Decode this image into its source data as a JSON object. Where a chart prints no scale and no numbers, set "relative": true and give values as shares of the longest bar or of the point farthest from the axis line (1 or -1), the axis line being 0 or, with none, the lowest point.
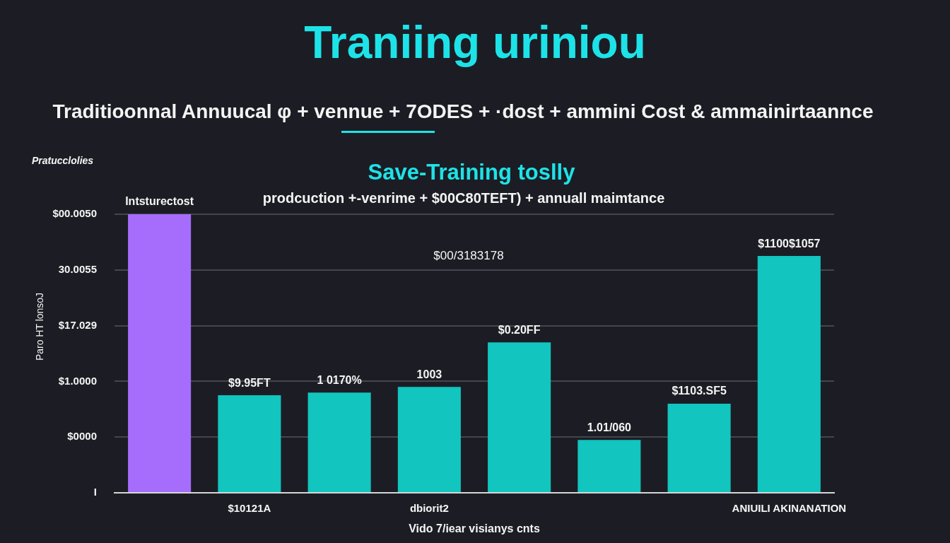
{
  "chart_data": {
    "type": "bar",
    "title": "Traniing uriniou",
    "subtitle": "Traditioonnal Annuucal φ + vennue + 7ODES + ·dost + ammini Cost & ammainirtaannce",
    "xlabel": "Vido 7/iear visianys cnts",
    "annotations": [
      "Pratucclolies",
      "Save-Training toslly",
      "prodcuction +-venrime + $00C80TEFT) + annuall maimtance",
      "$00/3183178",
      "Paro HT lonsoJ",
      "$00.0050",
      "30.0055",
      "$17.029",
      "$1.0000",
      "$0000",
      "I",
      {
        "text": "Intsturectost",
        "y": 1
      },
      {
        "text": "$9.95FT",
        "y": 0.35
      },
      {
        "text": "1 0170%",
        "y": 0.36
      },
      {
        "text": "1003",
        "y": 0.38
      },
      {
        "text": "$0.20FF",
        "y": 0.54
      },
      {
        "text": "1.01/060",
        "y": 0.19
      },
      {
        "text": "$1103.SF5",
        "y": 0.32
      },
      {
        "text": "$1100$1057",
        "y": 0.85
      }
    ],
    "categories": [
      null,
      "$10121A",
      null,
      "dbiorit2",
      null,
      null,
      null,
      "ANIUILI AKINANATION"
    ],
    "values": [
      1,
      0.35,
      0.36,
      0.38,
      0.54,
      0.19,
      0.32,
      0.85
    ],
    "colors": [
      "#a66cfc",
      "#12c5bf",
      "#12c5bf",
      "#12c5bf",
      "#12c5bf",
      "#12c5bf",
      "#12c5bf",
      "#12c5bf"
    ],
    "relative": true,
    "grid": "y"
  }
}
